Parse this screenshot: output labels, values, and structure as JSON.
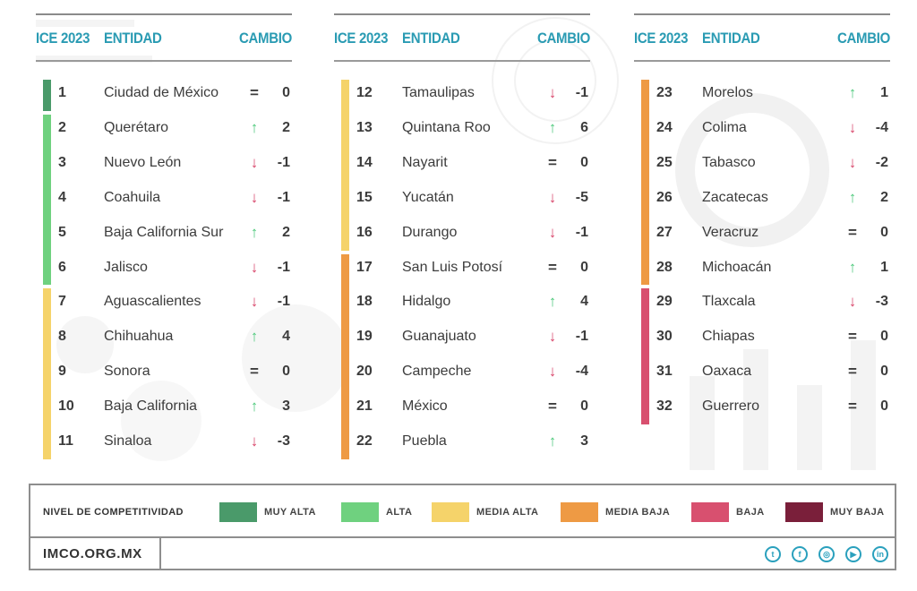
{
  "headers": {
    "ice": "ICE 2023",
    "entidad": "ENTIDAD",
    "cambio": "CAMBIO"
  },
  "colors": {
    "muy_alta": "#4a9a6a",
    "alta": "#6fd17f",
    "media_alta": "#f5d36a",
    "media_baja": "#ee9a44",
    "baja": "#d8506f",
    "muy_baja": "#7a1f3a",
    "accent": "#2a9bb3"
  },
  "columns": [
    {
      "rows": [
        {
          "rank": "1",
          "name": "Ciudad de México",
          "dir": "eq",
          "delta": "0",
          "level": "muy_alta"
        },
        {
          "rank": "2",
          "name": "Querétaro",
          "dir": "up",
          "delta": "2",
          "level": "alta"
        },
        {
          "rank": "3",
          "name": "Nuevo León",
          "dir": "down",
          "delta": "-1",
          "level": "alta"
        },
        {
          "rank": "4",
          "name": "Coahuila",
          "dir": "down",
          "delta": "-1",
          "level": "alta"
        },
        {
          "rank": "5",
          "name": "Baja California Sur",
          "dir": "up",
          "delta": "2",
          "level": "alta"
        },
        {
          "rank": "6",
          "name": "Jalisco",
          "dir": "down",
          "delta": "-1",
          "level": "alta"
        },
        {
          "rank": "7",
          "name": "Aguascalientes",
          "dir": "down",
          "delta": "-1",
          "level": "media_alta"
        },
        {
          "rank": "8",
          "name": "Chihuahua",
          "dir": "up",
          "delta": "4",
          "level": "media_alta"
        },
        {
          "rank": "9",
          "name": "Sonora",
          "dir": "eq",
          "delta": "0",
          "level": "media_alta"
        },
        {
          "rank": "10",
          "name": "Baja California",
          "dir": "up",
          "delta": "3",
          "level": "media_alta"
        },
        {
          "rank": "11",
          "name": "Sinaloa",
          "dir": "down",
          "delta": "-3",
          "level": "media_alta"
        }
      ]
    },
    {
      "rows": [
        {
          "rank": "12",
          "name": "Tamaulipas",
          "dir": "down",
          "delta": "-1",
          "level": "media_alta"
        },
        {
          "rank": "13",
          "name": "Quintana Roo",
          "dir": "up",
          "delta": "6",
          "level": "media_alta"
        },
        {
          "rank": "14",
          "name": "Nayarit",
          "dir": "eq",
          "delta": "0",
          "level": "media_alta"
        },
        {
          "rank": "15",
          "name": "Yucatán",
          "dir": "down",
          "delta": "-5",
          "level": "media_alta"
        },
        {
          "rank": "16",
          "name": "Durango",
          "dir": "down",
          "delta": "-1",
          "level": "media_alta"
        },
        {
          "rank": "17",
          "name": "San Luis Potosí",
          "dir": "eq",
          "delta": "0",
          "level": "media_baja"
        },
        {
          "rank": "18",
          "name": "Hidalgo",
          "dir": "up",
          "delta": "4",
          "level": "media_baja"
        },
        {
          "rank": "19",
          "name": "Guanajuato",
          "dir": "down",
          "delta": "-1",
          "level": "media_baja"
        },
        {
          "rank": "20",
          "name": "Campeche",
          "dir": "down",
          "delta": "-4",
          "level": "media_baja"
        },
        {
          "rank": "21",
          "name": "México",
          "dir": "eq",
          "delta": "0",
          "level": "media_baja"
        },
        {
          "rank": "22",
          "name": "Puebla",
          "dir": "up",
          "delta": "3",
          "level": "media_baja"
        }
      ]
    },
    {
      "rows": [
        {
          "rank": "23",
          "name": "Morelos",
          "dir": "up",
          "delta": "1",
          "level": "media_baja"
        },
        {
          "rank": "24",
          "name": "Colima",
          "dir": "down",
          "delta": "-4",
          "level": "media_baja"
        },
        {
          "rank": "25",
          "name": "Tabasco",
          "dir": "down",
          "delta": "-2",
          "level": "media_baja"
        },
        {
          "rank": "26",
          "name": "Zacatecas",
          "dir": "up",
          "delta": "2",
          "level": "media_baja"
        },
        {
          "rank": "27",
          "name": "Veracruz",
          "dir": "eq",
          "delta": "0",
          "level": "media_baja"
        },
        {
          "rank": "28",
          "name": "Michoacán",
          "dir": "up",
          "delta": "1",
          "level": "media_baja"
        },
        {
          "rank": "29",
          "name": "Tlaxcala",
          "dir": "down",
          "delta": "-3",
          "level": "baja"
        },
        {
          "rank": "30",
          "name": "Chiapas",
          "dir": "eq",
          "delta": "0",
          "level": "baja"
        },
        {
          "rank": "31",
          "name": "Oaxaca",
          "dir": "eq",
          "delta": "0",
          "level": "baja"
        },
        {
          "rank": "32",
          "name": "Guerrero",
          "dir": "eq",
          "delta": "0",
          "level": "baja"
        }
      ]
    }
  ],
  "legend": {
    "title": "NIVEL DE COMPETITIVIDAD",
    "items": [
      {
        "label": "MUY ALTA",
        "level": "muy_alta"
      },
      {
        "label": "ALTA",
        "level": "alta"
      },
      {
        "label": "MEDIA ALTA",
        "level": "media_alta"
      },
      {
        "label": "MEDIA BAJA",
        "level": "media_baja"
      },
      {
        "label": "BAJA",
        "level": "baja"
      },
      {
        "label": "MUY BAJA",
        "level": "muy_baja"
      }
    ]
  },
  "footer": {
    "site": "IMCO.ORG.MX",
    "social": [
      {
        "icon": "twitter-icon",
        "glyph": "t"
      },
      {
        "icon": "facebook-icon",
        "glyph": "f"
      },
      {
        "icon": "instagram-icon",
        "glyph": "◎"
      },
      {
        "icon": "youtube-icon",
        "glyph": "▶"
      },
      {
        "icon": "linkedin-icon",
        "glyph": "in"
      }
    ]
  }
}
